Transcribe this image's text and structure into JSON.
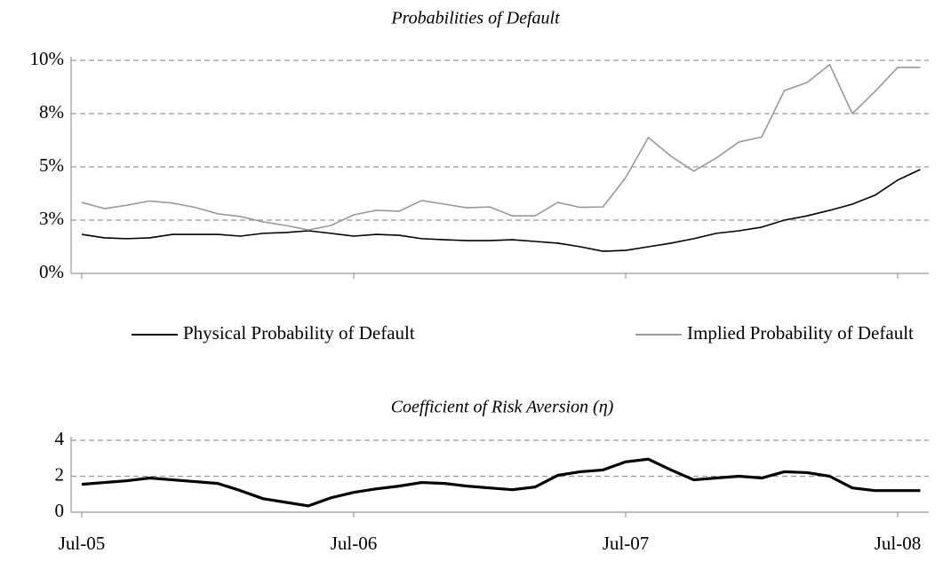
{
  "chart_data": [
    {
      "type": "line",
      "title": "Probabilities of Default",
      "ylim": [
        0,
        10
      ],
      "yticks": [
        {
          "value": 0,
          "label": "0%"
        },
        {
          "value": 2.5,
          "label": "3%"
        },
        {
          "value": 5,
          "label": "5%"
        },
        {
          "value": 7.5,
          "label": "8%"
        },
        {
          "value": 10,
          "label": "10%"
        }
      ],
      "grid": true,
      "legend": "bottom",
      "series": [
        {
          "name": "Physical Probability of Default",
          "color": "#000000",
          "values": [
            1.83,
            1.67,
            1.63,
            1.67,
            1.83,
            1.83,
            1.83,
            1.75,
            1.88,
            1.92,
            2.0,
            1.88,
            1.75,
            1.83,
            1.79,
            1.63,
            1.58,
            1.54,
            1.54,
            1.58,
            1.5,
            1.42,
            1.25,
            1.04,
            1.08,
            1.25,
            1.42,
            1.63,
            1.88,
            2.0,
            2.17,
            2.5,
            2.7,
            2.96,
            3.25,
            3.67,
            4.38,
            4.88
          ]
        },
        {
          "name": "Implied Probability of Default",
          "color": "#999999",
          "values": [
            3.33,
            3.04,
            3.2,
            3.4,
            3.3,
            3.1,
            2.8,
            2.67,
            2.42,
            2.25,
            2.04,
            2.25,
            2.75,
            2.96,
            2.92,
            3.42,
            3.25,
            3.08,
            3.12,
            2.7,
            2.7,
            3.33,
            3.1,
            3.12,
            4.5,
            6.38,
            5.5,
            4.8,
            5.42,
            6.17,
            6.4,
            8.58,
            8.96,
            9.8,
            7.5,
            8.54,
            9.67,
            9.67
          ]
        }
      ]
    },
    {
      "type": "line",
      "title": "Coefficient of Risk Aversion (η)",
      "ylim": [
        0,
        4
      ],
      "yticks": [
        0,
        2,
        4
      ],
      "grid": true,
      "categories": [
        "Jul-05",
        null,
        null,
        null,
        null,
        null,
        null,
        null,
        null,
        null,
        null,
        null,
        "Jul-06",
        null,
        null,
        null,
        null,
        null,
        null,
        null,
        null,
        null,
        null,
        null,
        "Jul-07",
        null,
        null,
        null,
        null,
        null,
        null,
        null,
        null,
        null,
        null,
        null,
        "Jul-08",
        null
      ],
      "series": [
        {
          "color": "#000000",
          "values": [
            1.55,
            1.65,
            1.75,
            1.9,
            1.8,
            1.7,
            1.6,
            1.2,
            0.75,
            0.55,
            0.35,
            0.8,
            1.1,
            1.3,
            1.45,
            1.65,
            1.6,
            1.45,
            1.35,
            1.25,
            1.4,
            2.05,
            2.25,
            2.35,
            2.8,
            2.95,
            2.35,
            1.8,
            1.9,
            2.0,
            1.9,
            2.25,
            2.2,
            2.0,
            1.35,
            1.2,
            1.2,
            1.2
          ]
        }
      ]
    }
  ]
}
